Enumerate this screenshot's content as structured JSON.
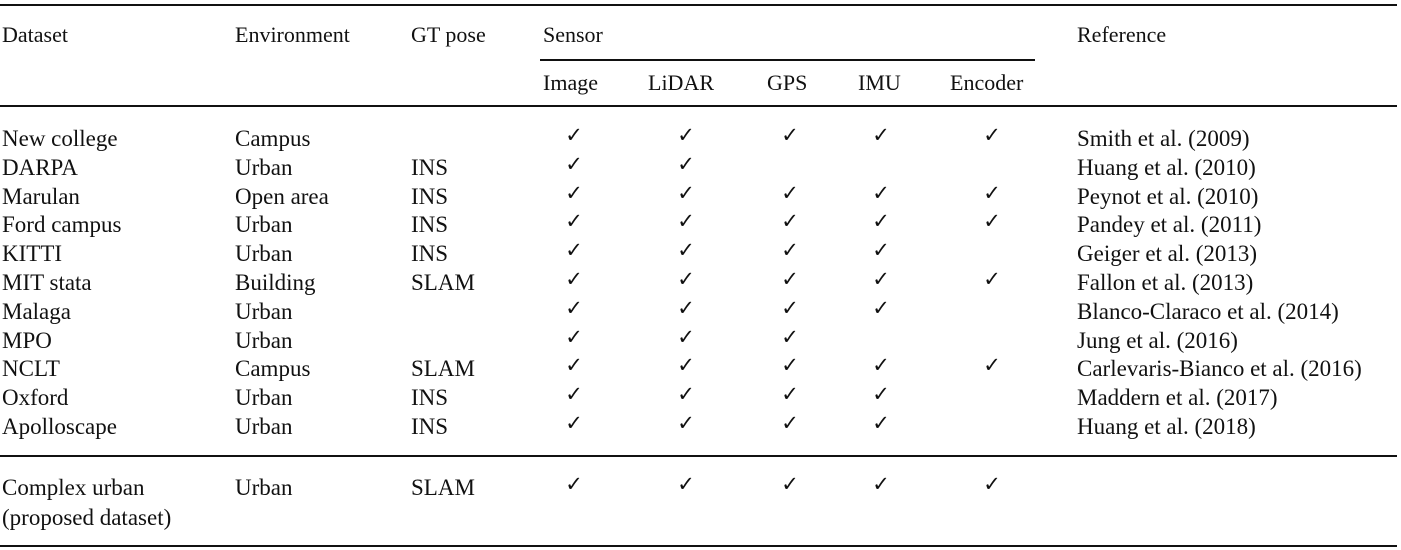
{
  "header": {
    "dataset": "Dataset",
    "environment": "Environment",
    "gt_pose": "GT pose",
    "sensor": "Sensor",
    "reference": "Reference",
    "sensors": [
      "Image",
      "LiDAR",
      "GPS",
      "IMU",
      "Encoder"
    ]
  },
  "check_glyph": "✓",
  "rows": [
    {
      "dataset": "New college",
      "environment": "Campus",
      "gt_pose": "",
      "sensors": [
        true,
        true,
        true,
        true,
        true
      ],
      "reference": "Smith et al. (2009)"
    },
    {
      "dataset": "DARPA",
      "environment": "Urban",
      "gt_pose": "INS",
      "sensors": [
        true,
        true,
        false,
        false,
        false
      ],
      "reference": "Huang et al. (2010)"
    },
    {
      "dataset": "Marulan",
      "environment": "Open area",
      "gt_pose": "INS",
      "sensors": [
        true,
        true,
        true,
        true,
        true
      ],
      "reference": "Peynot et al. (2010)"
    },
    {
      "dataset": "Ford campus",
      "environment": "Urban",
      "gt_pose": "INS",
      "sensors": [
        true,
        true,
        true,
        true,
        true
      ],
      "reference": "Pandey et al. (2011)"
    },
    {
      "dataset": "KITTI",
      "environment": "Urban",
      "gt_pose": "INS",
      "sensors": [
        true,
        true,
        true,
        true,
        false
      ],
      "reference": "Geiger et al. (2013)"
    },
    {
      "dataset": "MIT stata",
      "environment": "Building",
      "gt_pose": "SLAM",
      "sensors": [
        true,
        true,
        true,
        true,
        true
      ],
      "reference": "Fallon et al. (2013)"
    },
    {
      "dataset": "Malaga",
      "environment": "Urban",
      "gt_pose": "",
      "sensors": [
        true,
        true,
        true,
        true,
        false
      ],
      "reference": "Blanco-Claraco et al. (2014)"
    },
    {
      "dataset": "MPO",
      "environment": "Urban",
      "gt_pose": "",
      "sensors": [
        true,
        true,
        true,
        false,
        false
      ],
      "reference": "Jung et al. (2016)"
    },
    {
      "dataset": "NCLT",
      "environment": "Campus",
      "gt_pose": "SLAM",
      "sensors": [
        true,
        true,
        true,
        true,
        true
      ],
      "reference": "Carlevaris-Bianco et al. (2016)"
    },
    {
      "dataset": "Oxford",
      "environment": "Urban",
      "gt_pose": "INS",
      "sensors": [
        true,
        true,
        true,
        true,
        false
      ],
      "reference": "Maddern et al. (2017)"
    },
    {
      "dataset": "Apolloscape",
      "environment": "Urban",
      "gt_pose": "INS",
      "sensors": [
        true,
        true,
        true,
        true,
        false
      ],
      "reference": "Huang et al. (2018)"
    }
  ],
  "proposed": {
    "dataset_line1": "Complex urban",
    "dataset_line2": "(proposed dataset)",
    "environment": "Urban",
    "gt_pose": "SLAM",
    "sensors": [
      true,
      true,
      true,
      true,
      true
    ],
    "reference": ""
  }
}
